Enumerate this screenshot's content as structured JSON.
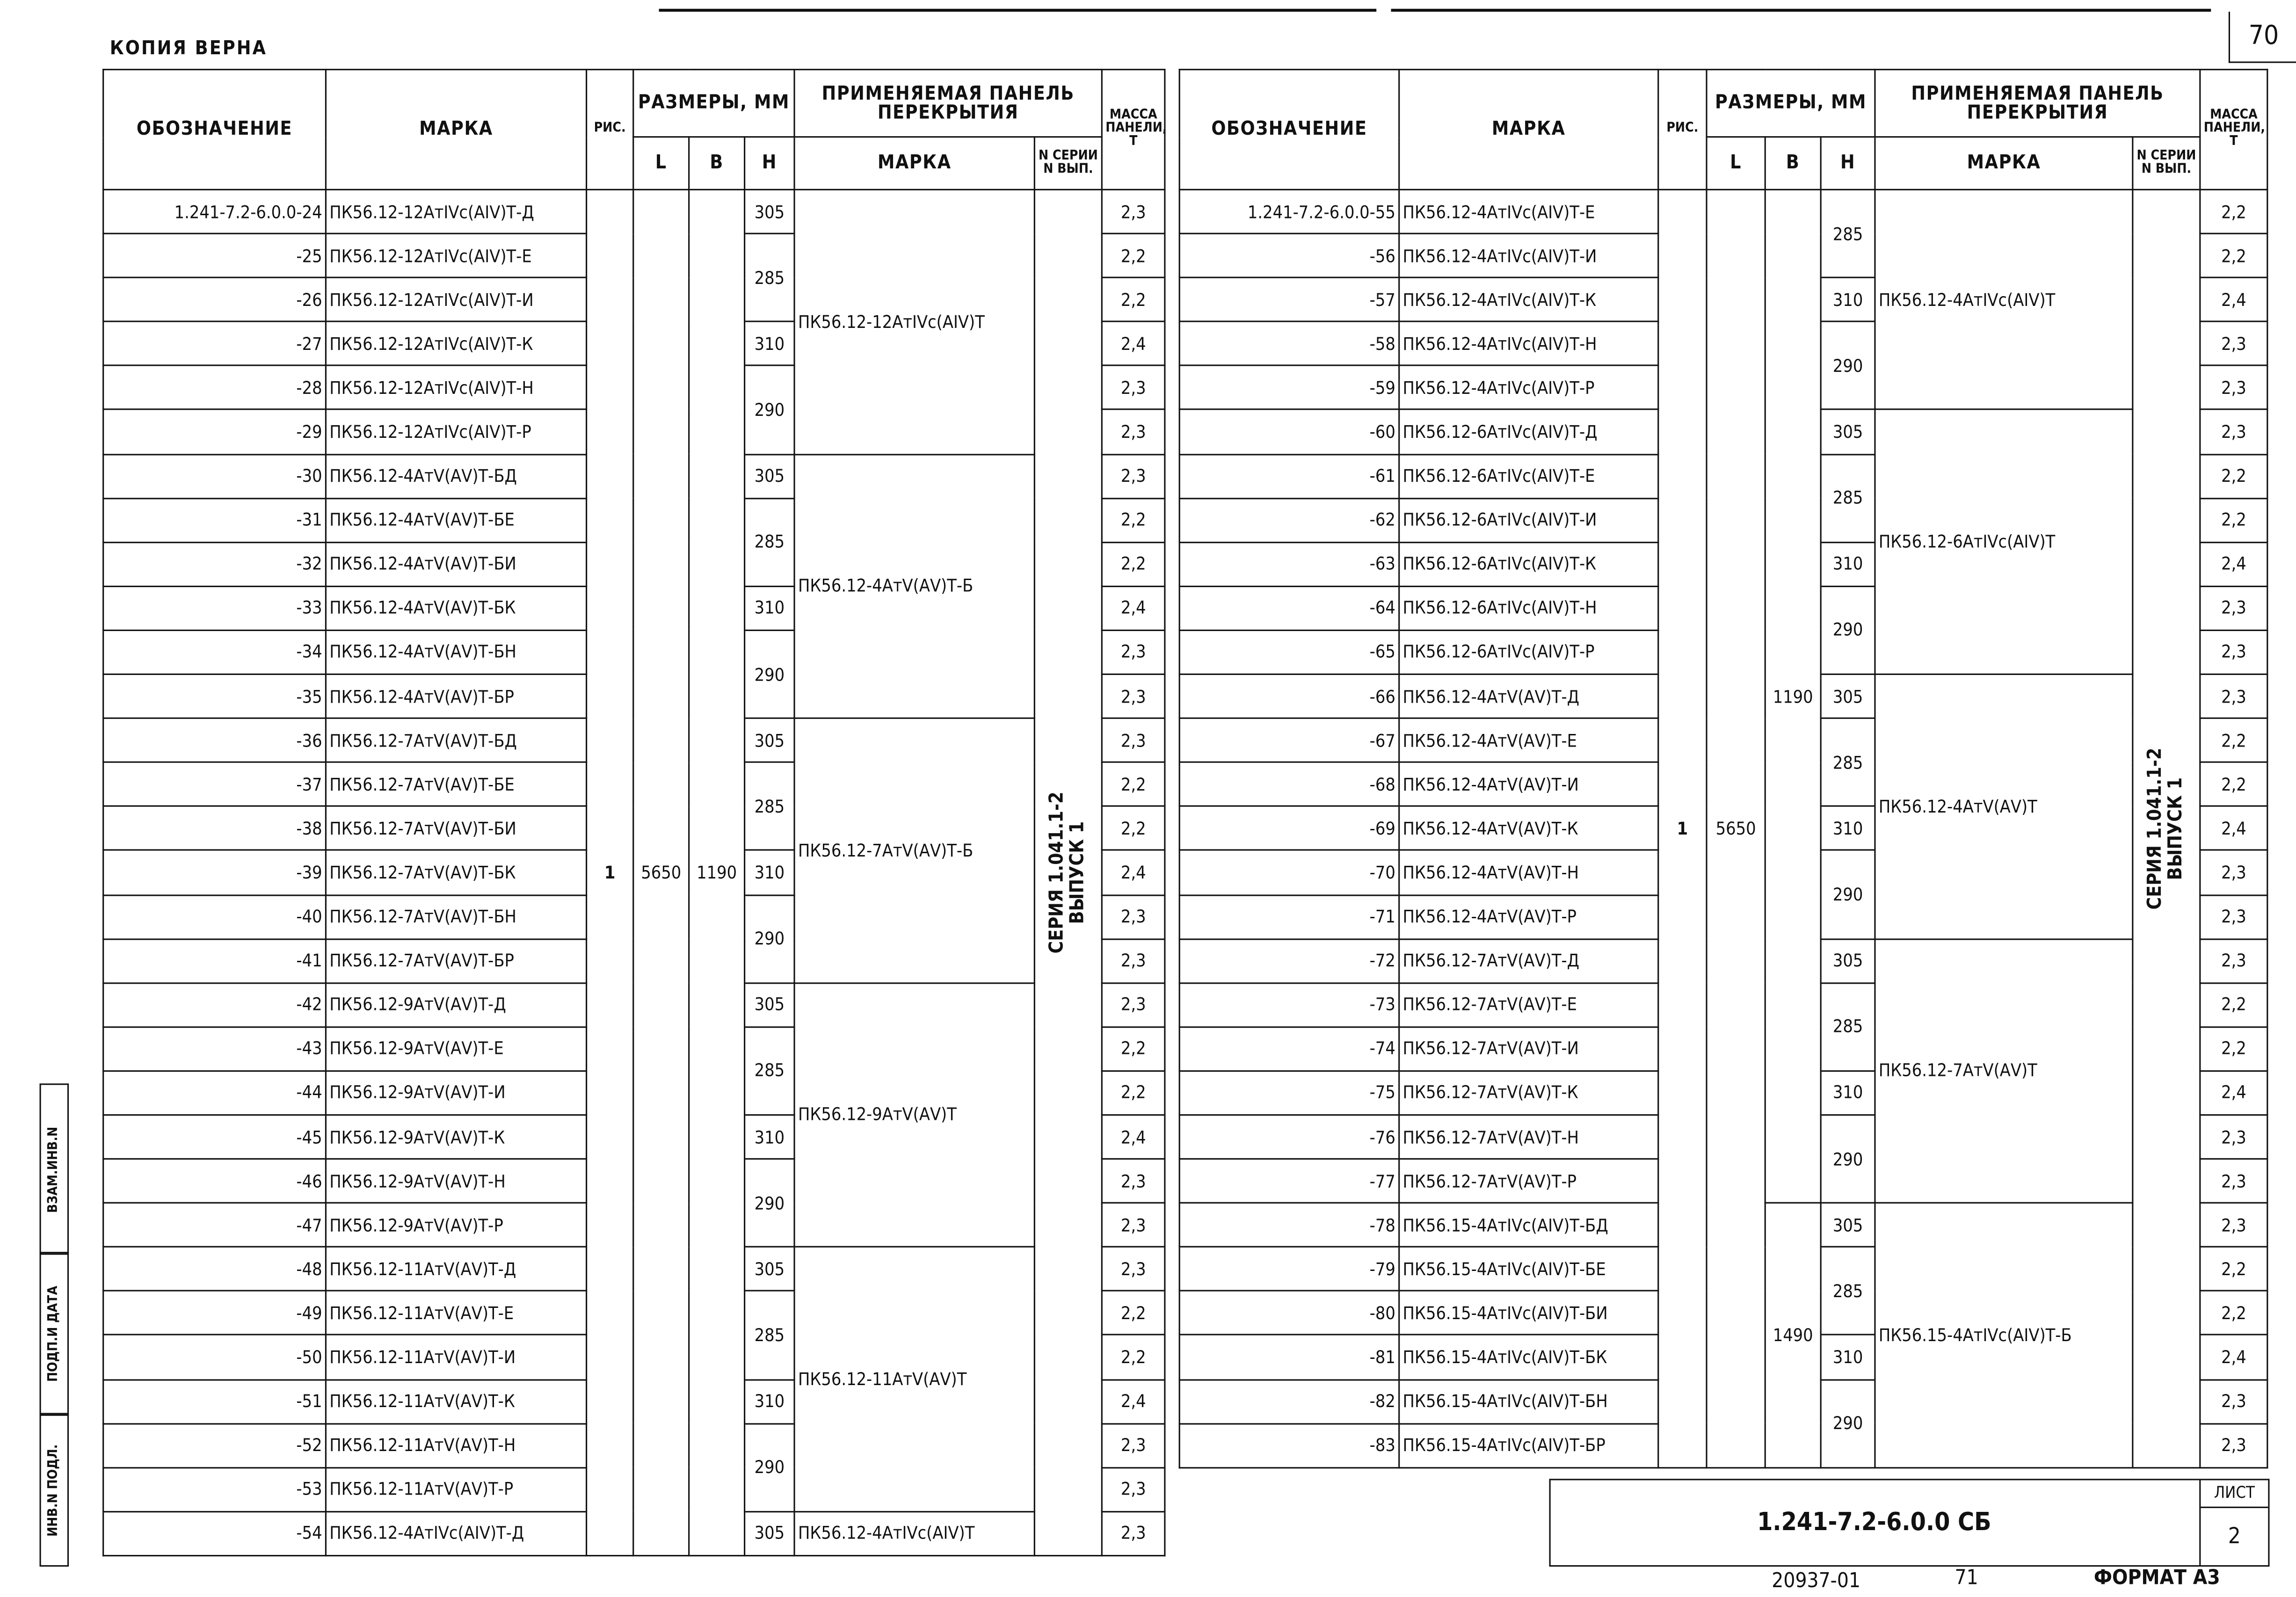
{
  "top": {
    "copy_note": "КОПИЯ ВЕРНА",
    "page_number": "70"
  },
  "headers": {
    "designation": "ОБОЗНАЧЕНИЕ",
    "mark": "МАРКА",
    "figure": "РИС.",
    "dimensions": "РАЗМЕРЫ, ММ",
    "L": "L",
    "B": "B",
    "H": "H",
    "applied_panel": "ПРИМЕНЯЕМАЯ ПАНЕЛЬ ПЕРЕКРЫТИЯ",
    "applied_mark": "МАРКА",
    "series_issue": "N СЕРИИ N ВЫП.",
    "mass": "МАССА ПАНЕЛИ, Т"
  },
  "shared": {
    "figure": "1",
    "L": "5650",
    "B": "1190",
    "B_alt": "1490",
    "series": "СЕРИЯ 1.041.1-2",
    "issue": "ВЫПУСК 1"
  },
  "left_table": {
    "rows": [
      {
        "code": "1.241-7.2-6.0.0-24",
        "mark": "ПК56.12-12АтIVс(АIV)Т-Д",
        "h": "305",
        "applied": "ПК56.12-12АтIVс(АIV)Т",
        "mass": "2,3"
      },
      {
        "code": "-25",
        "mark": "ПК56.12-12АтIVс(АIV)Т-Е",
        "h": "285",
        "applied": "ПК56.12-12АтIVс(АIV)Т",
        "mass": "2,2"
      },
      {
        "code": "-26",
        "mark": "ПК56.12-12АтIVс(АIV)Т-И",
        "h": null,
        "applied": "ПК56.12-12АтIVс(АIV)Т",
        "mass": "2,2"
      },
      {
        "code": "-27",
        "mark": "ПК56.12-12АтIVс(АIV)Т-К",
        "h": "310",
        "applied": "ПК56.12-12АтIVс(АIV)Т",
        "mass": "2,4"
      },
      {
        "code": "-28",
        "mark": "ПК56.12-12АтIVс(АIV)Т-Н",
        "h": "290",
        "applied": "ПК56.12-12АтIVс(АIV)Т",
        "mass": "2,3"
      },
      {
        "code": "-29",
        "mark": "ПК56.12-12АтIVс(АIV)Т-Р",
        "h": null,
        "applied": "ПК56.12-12АтIVс(АIV)Т",
        "mass": "2,3"
      },
      {
        "code": "-30",
        "mark": "ПК56.12-4АтV(АV)Т-БД",
        "h": "305",
        "applied": "ПК56.12-4АтV(АV)Т-Б",
        "mass": "2,3"
      },
      {
        "code": "-31",
        "mark": "ПК56.12-4АтV(АV)Т-БЕ",
        "h": "285",
        "applied": "ПК56.12-4АтV(АV)Т-Б",
        "mass": "2,2"
      },
      {
        "code": "-32",
        "mark": "ПК56.12-4АтV(АV)Т-БИ",
        "h": null,
        "applied": "ПК56.12-4АтV(АV)Т-Б",
        "mass": "2,2"
      },
      {
        "code": "-33",
        "mark": "ПК56.12-4АтV(АV)Т-БК",
        "h": "310",
        "applied": "ПК56.12-4АтV(АV)Т-Б",
        "mass": "2,4"
      },
      {
        "code": "-34",
        "mark": "ПК56.12-4АтV(АV)Т-БН",
        "h": "290",
        "applied": "ПК56.12-4АтV(АV)Т-Б",
        "mass": "2,3"
      },
      {
        "code": "-35",
        "mark": "ПК56.12-4АтV(АV)Т-БР",
        "h": null,
        "applied": "ПК56.12-4АтV(АV)Т-Б",
        "mass": "2,3"
      },
      {
        "code": "-36",
        "mark": "ПК56.12-7АтV(АV)Т-БД",
        "h": "305",
        "applied": "ПК56.12-7АтV(АV)Т-Б",
        "mass": "2,3"
      },
      {
        "code": "-37",
        "mark": "ПК56.12-7АтV(АV)Т-БЕ",
        "h": "285",
        "applied": "ПК56.12-7АтV(АV)Т-Б",
        "mass": "2,2"
      },
      {
        "code": "-38",
        "mark": "ПК56.12-7АтV(АV)Т-БИ",
        "h": null,
        "applied": "ПК56.12-7АтV(АV)Т-Б",
        "mass": "2,2"
      },
      {
        "code": "-39",
        "mark": "ПК56.12-7АтV(АV)Т-БК",
        "h": "310",
        "applied": "ПК56.12-7АтV(АV)Т-Б",
        "mass": "2,4"
      },
      {
        "code": "-40",
        "mark": "ПК56.12-7АтV(АV)Т-БН",
        "h": "290",
        "applied": "ПК56.12-7АтV(АV)Т-Б",
        "mass": "2,3"
      },
      {
        "code": "-41",
        "mark": "ПК56.12-7АтV(АV)Т-БР",
        "h": null,
        "applied": "ПК56.12-7АтV(АV)Т-Б",
        "mass": "2,3"
      },
      {
        "code": "-42",
        "mark": "ПК56.12-9АтV(АV)Т-Д",
        "h": "305",
        "applied": "ПК56.12-9АтV(АV)Т",
        "mass": "2,3"
      },
      {
        "code": "-43",
        "mark": "ПК56.12-9АтV(АV)Т-Е",
        "h": "285",
        "applied": "ПК56.12-9АтV(АV)Т",
        "mass": "2,2"
      },
      {
        "code": "-44",
        "mark": "ПК56.12-9АтV(АV)Т-И",
        "h": null,
        "applied": "ПК56.12-9АтV(АV)Т",
        "mass": "2,2"
      },
      {
        "code": "-45",
        "mark": "ПК56.12-9АтV(АV)Т-К",
        "h": "310",
        "applied": "ПК56.12-9АтV(АV)Т",
        "mass": "2,4"
      },
      {
        "code": "-46",
        "mark": "ПК56.12-9АтV(АV)Т-Н",
        "h": "290",
        "applied": "ПК56.12-9АтV(АV)Т",
        "mass": "2,3"
      },
      {
        "code": "-47",
        "mark": "ПК56.12-9АтV(АV)Т-Р",
        "h": null,
        "applied": "ПК56.12-9АтV(АV)Т",
        "mass": "2,3"
      },
      {
        "code": "-48",
        "mark": "ПК56.12-11АтV(АV)Т-Д",
        "h": "305",
        "applied": "ПК56.12-11АтV(АV)Т",
        "mass": "2,3"
      },
      {
        "code": "-49",
        "mark": "ПК56.12-11АтV(АV)Т-Е",
        "h": "285",
        "applied": "ПК56.12-11АтV(АV)Т",
        "mass": "2,2"
      },
      {
        "code": "-50",
        "mark": "ПК56.12-11АтV(АV)Т-И",
        "h": null,
        "applied": "ПК56.12-11АтV(АV)Т",
        "mass": "2,2"
      },
      {
        "code": "-51",
        "mark": "ПК56.12-11АтV(АV)Т-К",
        "h": "310",
        "applied": "ПК56.12-11АтV(АV)Т",
        "mass": "2,4"
      },
      {
        "code": "-52",
        "mark": "ПК56.12-11АтV(АV)Т-Н",
        "h": "290",
        "applied": "ПК56.12-11АтV(АV)Т",
        "mass": "2,3"
      },
      {
        "code": "-53",
        "mark": "ПК56.12-11АтV(АV)Т-Р",
        "h": null,
        "applied": "ПК56.12-11АтV(АV)Т",
        "mass": "2,3"
      },
      {
        "code": "-54",
        "mark": "ПК56.12-4АтIVс(АIV)Т-Д",
        "h": "305",
        "applied": "ПК56.12-4АтIVс(АIV)Т",
        "mass": "2,3"
      }
    ]
  },
  "right_table": {
    "rows": [
      {
        "code": "1.241-7.2-6.0.0-55",
        "mark": "ПК56.12-4АтIVс(АIV)Т-Е",
        "h": "285",
        "applied": "ПК56.12-4АтIVс(АIV)Т",
        "mass": "2,2"
      },
      {
        "code": "-56",
        "mark": "ПК56.12-4АтIVс(АIV)Т-И",
        "h": null,
        "applied": "ПК56.12-4АтIVс(АIV)Т",
        "mass": "2,2"
      },
      {
        "code": "-57",
        "mark": "ПК56.12-4АтIVс(АIV)Т-К",
        "h": "310",
        "applied": "ПК56.12-4АтIVс(АIV)Т",
        "mass": "2,4"
      },
      {
        "code": "-58",
        "mark": "ПК56.12-4АтIVс(АIV)Т-Н",
        "h": "290",
        "applied": "ПК56.12-4АтIVс(АIV)Т",
        "mass": "2,3"
      },
      {
        "code": "-59",
        "mark": "ПК56.12-4АтIVс(АIV)Т-Р",
        "h": null,
        "applied": "ПК56.12-4АтIVс(АIV)Т",
        "mass": "2,3"
      },
      {
        "code": "-60",
        "mark": "ПК56.12-6АтIVс(АIV)Т-Д",
        "h": "305",
        "applied": "ПК56.12-6АтIVс(АIV)Т",
        "mass": "2,3"
      },
      {
        "code": "-61",
        "mark": "ПК56.12-6АтIVс(АIV)Т-Е",
        "h": "285",
        "applied": "ПК56.12-6АтIVс(АIV)Т",
        "mass": "2,2"
      },
      {
        "code": "-62",
        "mark": "ПК56.12-6АтIVс(АIV)Т-И",
        "h": null,
        "applied": "ПК56.12-6АтIVс(АIV)Т",
        "mass": "2,2"
      },
      {
        "code": "-63",
        "mark": "ПК56.12-6АтIVс(АIV)Т-К",
        "h": "310",
        "applied": "ПК56.12-6АтIVс(АIV)Т",
        "mass": "2,4"
      },
      {
        "code": "-64",
        "mark": "ПК56.12-6АтIVс(АIV)Т-Н",
        "h": "290",
        "applied": "ПК56.12-6АтIVс(АIV)Т",
        "mass": "2,3"
      },
      {
        "code": "-65",
        "mark": "ПК56.12-6АтIVс(АIV)Т-Р",
        "h": null,
        "applied": "ПК56.12-6АтIVс(АIV)Т",
        "mass": "2,3"
      },
      {
        "code": "-66",
        "mark": "ПК56.12-4АтV(АV)Т-Д",
        "h": "305",
        "applied": "ПК56.12-4АтV(АV)Т",
        "mass": "2,3"
      },
      {
        "code": "-67",
        "mark": "ПК56.12-4АтV(АV)Т-Е",
        "h": "285",
        "applied": "ПК56.12-4АтV(АV)Т",
        "mass": "2,2"
      },
      {
        "code": "-68",
        "mark": "ПК56.12-4АтV(АV)Т-И",
        "h": null,
        "applied": "ПК56.12-4АтV(АV)Т",
        "mass": "2,2"
      },
      {
        "code": "-69",
        "mark": "ПК56.12-4АтV(АV)Т-К",
        "h": "310",
        "applied": "ПК56.12-4АтV(АV)Т",
        "mass": "2,4"
      },
      {
        "code": "-70",
        "mark": "ПК56.12-4АтV(АV)Т-Н",
        "h": "290",
        "applied": "ПК56.12-4АтV(АV)Т",
        "mass": "2,3"
      },
      {
        "code": "-71",
        "mark": "ПК56.12-4АтV(АV)Т-Р",
        "h": null,
        "applied": "ПК56.12-4АтV(АV)Т",
        "mass": "2,3"
      },
      {
        "code": "-72",
        "mark": "ПК56.12-7АтV(АV)Т-Д",
        "h": "305",
        "applied": "ПК56.12-7АтV(АV)Т",
        "mass": "2,3"
      },
      {
        "code": "-73",
        "mark": "ПК56.12-7АтV(АV)Т-Е",
        "h": "285",
        "applied": "ПК56.12-7АтV(АV)Т",
        "mass": "2,2"
      },
      {
        "code": "-74",
        "mark": "ПК56.12-7АтV(АV)Т-И",
        "h": null,
        "applied": "ПК56.12-7АтV(АV)Т",
        "mass": "2,2"
      },
      {
        "code": "-75",
        "mark": "ПК56.12-7АтV(АV)Т-К",
        "h": "310",
        "applied": "ПК56.12-7АтV(АV)Т",
        "mass": "2,4"
      },
      {
        "code": "-76",
        "mark": "ПК56.12-7АтV(АV)Т-Н",
        "h": "290",
        "applied": "ПК56.12-7АтV(АV)Т",
        "mass": "2,3"
      },
      {
        "code": "-77",
        "mark": "ПК56.12-7АтV(АV)Т-Р",
        "h": null,
        "applied": "ПК56.12-7АтV(АV)Т",
        "mass": "2,3"
      },
      {
        "code": "-78",
        "mark": "ПК56.15-4АтIVс(АIV)Т-БД",
        "h": "305",
        "applied": "ПК56.15-4АтIVс(АIV)Т-Б",
        "mass": "2,3"
      },
      {
        "code": "-79",
        "mark": "ПК56.15-4АтIVс(АIV)Т-БЕ",
        "h": "285",
        "applied": "ПК56.15-4АтIVс(АIV)Т-Б",
        "mass": "2,2"
      },
      {
        "code": "-80",
        "mark": "ПК56.15-4АтIVс(АIV)Т-БИ",
        "h": null,
        "applied": "ПК56.15-4АтIVс(АIV)Т-Б",
        "mass": "2,2"
      },
      {
        "code": "-81",
        "mark": "ПК56.15-4АтIVс(АIV)Т-БК",
        "h": "310",
        "applied": "ПК56.15-4АтIVс(АIV)Т-Б",
        "mass": "2,4"
      },
      {
        "code": "-82",
        "mark": "ПК56.15-4АтIVс(АIV)Т-БН",
        "h": "290",
        "applied": "ПК56.15-4АтIVс(АIV)Т-Б",
        "mass": "2,3"
      },
      {
        "code": "-83",
        "mark": "ПК56.15-4АтIVс(АIV)Т-БР",
        "h": null,
        "applied": "ПК56.15-4АтIVс(АIV)Т-Б",
        "mass": "2,3"
      }
    ]
  },
  "title_block": {
    "document": "1.241-7.2-6.0.0 СБ",
    "sheet_label": "ЛИСТ",
    "sheet_number": "2"
  },
  "footer": {
    "archive_number": "20937-01",
    "page": "71",
    "format": "ФОРМАТ А3"
  },
  "side_stamp": {
    "inv_original": "ИНВ.N ПОДЛ.",
    "signature_date": "ПОДП.И ДАТА",
    "replacement_inv": "ВЗАМ.ИНВ.N"
  }
}
